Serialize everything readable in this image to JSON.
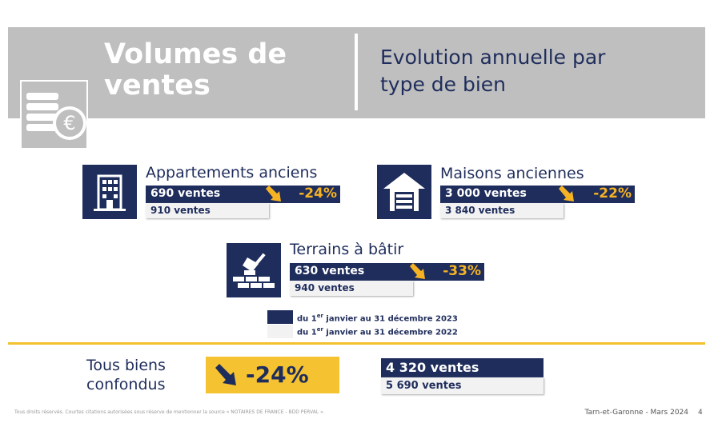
{
  "header": {
    "title": [
      "Volumes de",
      "ventes"
    ],
    "subtitle": [
      "Evolution annuelle par",
      "type de bien"
    ]
  },
  "cards": [
    {
      "title": "Appartements anciens",
      "current": "690 ventes",
      "change": "-24%",
      "previous": "910 ventes"
    },
    {
      "title": "Maisons anciennes",
      "current": "3 000 ventes",
      "change": "-22%",
      "previous": "3 840 ventes"
    },
    {
      "title": "Terrains à bâtir",
      "current": "630 ventes",
      "change": "-33%",
      "previous": "940 ventes"
    }
  ],
  "legend": [
    {
      "before": "du 1",
      "sup": "er",
      "after": "janvier au 31 décembre 2023"
    },
    {
      "before": "du 1",
      "sup": "er",
      "after": "janvier au 31 décembre 2022"
    }
  ],
  "total": {
    "label": [
      "Tous biens",
      "confondus"
    ],
    "change": "-24%",
    "current": "4 320 ventes",
    "previous": "5 690 ventes"
  },
  "footer": {
    "note": "Tous droits réservés. Courtes citations autorisées sous réserve de mentionner la source « NOTAIRES DE FRANCE - BDD PERVAL ».",
    "source": "Tarn-et-Garonne - Mars 2024",
    "page": "4"
  }
}
